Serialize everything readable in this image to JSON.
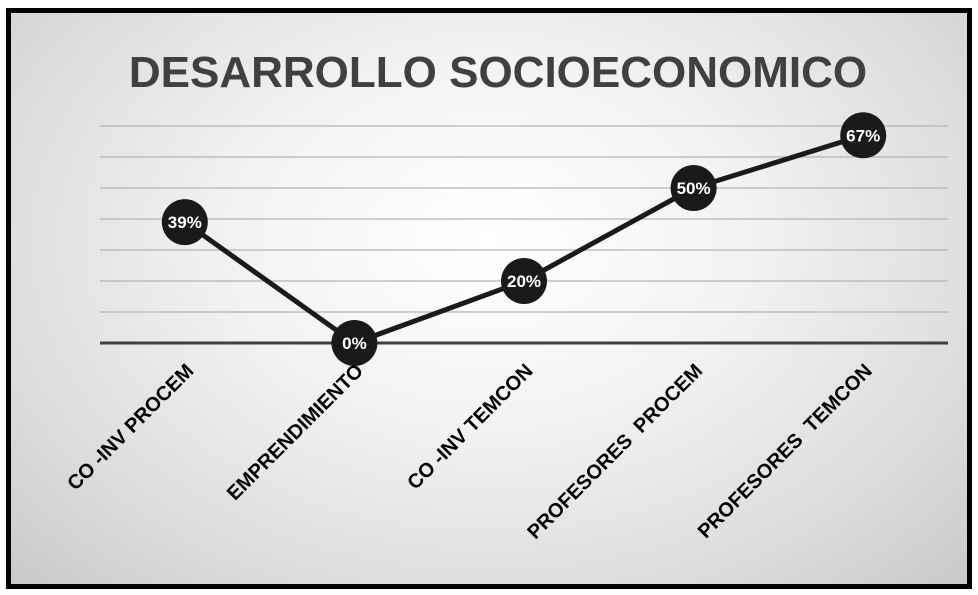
{
  "chart_data": {
    "type": "line",
    "title": "DESARROLLO SOCIOECONOMICO",
    "categories": [
      "CO -INV PROCEM",
      "EMPRENDIMIENTO",
      "CO -INV TEMCON",
      "PROFESORES  PROCEM",
      "PROFESORES  TEMCON"
    ],
    "series": [
      {
        "values": [
          39,
          0,
          20,
          50,
          67
        ],
        "labels": [
          "39%",
          "0%",
          "20%",
          "50%",
          "67%"
        ],
        "color": "#1a1a1a"
      }
    ],
    "ylim": [
      0,
      70
    ],
    "grid": true,
    "legend": "none"
  }
}
